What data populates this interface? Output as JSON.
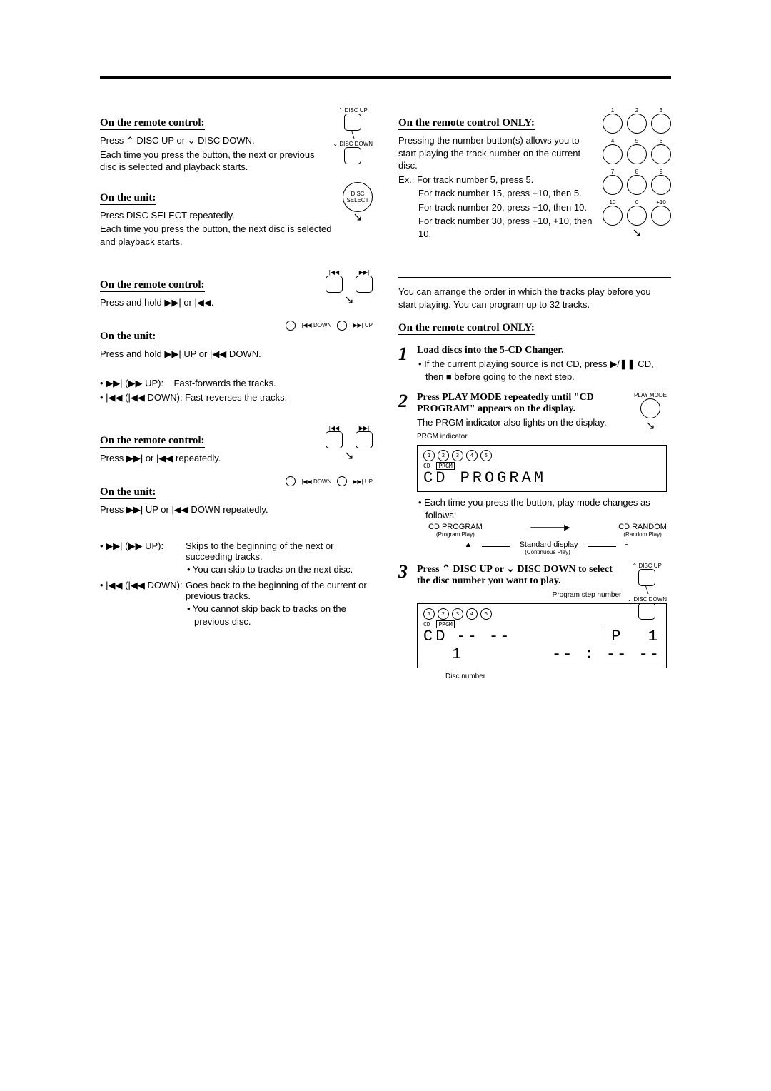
{
  "page": {
    "sections": {
      "disc_select_remote": {
        "heading": "On the remote control:",
        "line1_pre": "Press ",
        "line1_mid": " DISC UP or ",
        "line1_post": " DISC DOWN.",
        "line2": "Each time you press the button, the next or previous disc is selected and playback starts.",
        "side_up_label": "DISC UP",
        "side_down_label": "DISC DOWN"
      },
      "disc_select_unit": {
        "heading": "On the unit:",
        "line1": "Press DISC SELECT repeatedly.",
        "line2": "Each time you press the button, the next disc is selected and playback starts.",
        "knob_label": "DISC SELECT"
      },
      "search_remote": {
        "heading": "On the remote control:",
        "line1_pre": "Press and hold ",
        "line1_mid": " or ",
        "line1_post": "."
      },
      "search_unit": {
        "heading": "On the unit:",
        "line1_pre": "Press and hold ",
        "line1_mid": " UP or ",
        "line1_post": " DOWN.",
        "down_label": "DOWN",
        "up_label": "UP",
        "ff_label_pre": "• ▶▶| (▶▶ UP):",
        "ff_desc": "Fast-forwards the tracks.",
        "fr_label": "• |◀◀ (|◀◀ DOWN): Fast-reverses the tracks."
      },
      "skip_remote": {
        "heading": "On the remote control:",
        "line1_pre": "Press ",
        "line1_mid": " or ",
        "line1_post": " repeatedly."
      },
      "skip_unit": {
        "heading": "On the unit:",
        "line1_pre": "Press ",
        "line1_mid": " UP or ",
        "line1_post": " DOWN repeatedly.",
        "down_label": "DOWN",
        "up_label": "UP",
        "fwd_term": "• ▶▶| (▶▶ UP):",
        "fwd_desc": "Skips to the beginning of the next or succeeding tracks.",
        "fwd_note": "• You can skip to tracks on the next disc.",
        "back_term": "• |◀◀ (|◀◀ DOWN):",
        "back_desc": "Goes back to the beginning of the current or previous tracks.",
        "back_note": "• You cannot skip back to tracks on the previous disc."
      },
      "numpad": {
        "heading": "On the remote control ONLY:",
        "intro": "Pressing the number button(s) allows you to start playing the track number on the current disc.",
        "ex_label": "Ex.: For track number 5, press 5.",
        "ex_15": "For track number 15, press +10, then 5.",
        "ex_20": "For track number 20, press +10, then 10.",
        "ex_30": "For track number 30, press +10, +10, then 10.",
        "buttons": [
          "1",
          "2",
          "3",
          "4",
          "5",
          "6",
          "7",
          "8",
          "9",
          "10",
          "0",
          "+10"
        ]
      },
      "program": {
        "intro": "You can arrange the order in which the tracks play before you start playing. You can program up to 32 tracks.",
        "remote_only": "On the remote control ONLY:",
        "step1_title": "Load discs into the 5-CD Changer.",
        "step1_note_pre": "• If the current playing source is not CD, press ▶/",
        "step1_note_mid": " CD, then ",
        "step1_note_post": " before going to the next step.",
        "step2_title": "Press PLAY MODE repeatedly until \"CD PROGRAM\" appears on the display.",
        "step2_note_pre": "The ",
        "step2_note_mid": "PRGM",
        "step2_note_post": " indicator also lights on the display.",
        "play_mode_label": "PLAY MODE",
        "lcd1_indicator_caption": "PRGM indicator",
        "lcd1_row_cd": "CD",
        "lcd1_row_prgm": "PRGM",
        "lcd1_text": "CD PROGRAM",
        "each_time": "• Each time you press the button, play mode changes as follows:",
        "mode_cd_program": "CD PROGRAM",
        "mode_program_sub": "(Program Play)",
        "mode_cd_random": "CD RANDOM",
        "mode_random_sub": "(Random Play)",
        "mode_standard": "Standard display",
        "mode_standard_sub": "(Continuous Play)",
        "step3_title_pre": "Press ",
        "step3_title_mid1": " DISC UP or ",
        "step3_title_mid2": " DISC DOWN to select the disc number you want to play.",
        "step3_up_label": "DISC UP",
        "step3_down_label": "DISC DOWN",
        "caption_step_number": "Program step number",
        "lcd2_cd": "CD",
        "lcd2_p": "P",
        "lcd2_1a": "1",
        "lcd2_1b": "1",
        "caption_disc_number": "Disc number"
      }
    }
  }
}
